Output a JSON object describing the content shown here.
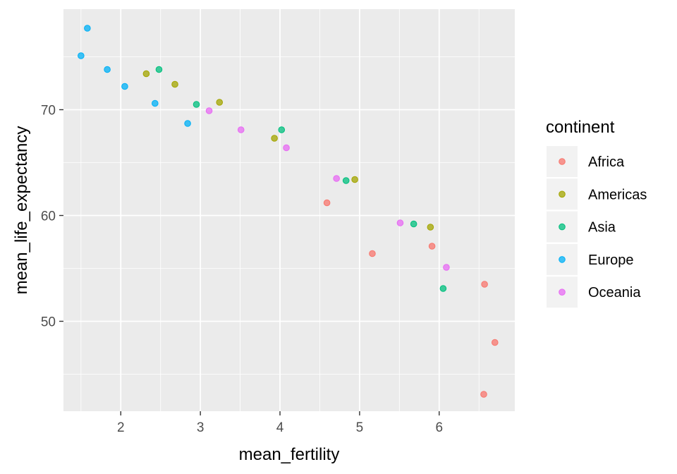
{
  "chart_data": {
    "type": "scatter",
    "xlabel": "mean_fertility",
    "ylabel": "mean_life_expectancy",
    "xlim": [
      1.28,
      6.95
    ],
    "ylim": [
      41.5,
      79.5
    ],
    "x_ticks": [
      2,
      3,
      4,
      5,
      6
    ],
    "y_ticks": [
      50,
      60,
      70
    ],
    "x_tick_labels": [
      "2",
      "3",
      "4",
      "5",
      "6"
    ],
    "y_tick_labels": [
      "50",
      "60",
      "70"
    ],
    "grid": true,
    "legend_title": "continent",
    "legend_position": "right",
    "series": [
      {
        "name": "Africa",
        "color": "#F8766D",
        "points": [
          [
            4.59,
            61.2
          ],
          [
            5.16,
            56.4
          ],
          [
            5.91,
            57.1
          ],
          [
            6.57,
            53.5
          ],
          [
            6.7,
            48.0
          ],
          [
            6.56,
            43.1
          ]
        ]
      },
      {
        "name": "Americas",
        "color": "#A3A500",
        "points": [
          [
            2.32,
            73.4
          ],
          [
            2.68,
            72.4
          ],
          [
            3.24,
            70.7
          ],
          [
            3.93,
            67.3
          ],
          [
            4.94,
            63.4
          ],
          [
            5.89,
            58.9
          ]
        ]
      },
      {
        "name": "Asia",
        "color": "#00BF7D",
        "points": [
          [
            2.48,
            73.8
          ],
          [
            2.95,
            70.5
          ],
          [
            4.02,
            68.1
          ],
          [
            4.83,
            63.3
          ],
          [
            5.68,
            59.2
          ],
          [
            6.05,
            53.1
          ]
        ]
      },
      {
        "name": "Europe",
        "color": "#00B0F6",
        "points": [
          [
            1.58,
            77.7
          ],
          [
            1.5,
            75.1
          ],
          [
            1.83,
            73.8
          ],
          [
            2.05,
            72.2
          ],
          [
            2.43,
            70.6
          ],
          [
            2.84,
            68.7
          ]
        ]
      },
      {
        "name": "Oceania",
        "color": "#E76BF3",
        "points": [
          [
            3.11,
            69.9
          ],
          [
            3.51,
            68.1
          ],
          [
            4.08,
            66.4
          ],
          [
            4.71,
            63.5
          ],
          [
            5.51,
            59.3
          ],
          [
            6.09,
            55.1
          ]
        ]
      }
    ]
  }
}
